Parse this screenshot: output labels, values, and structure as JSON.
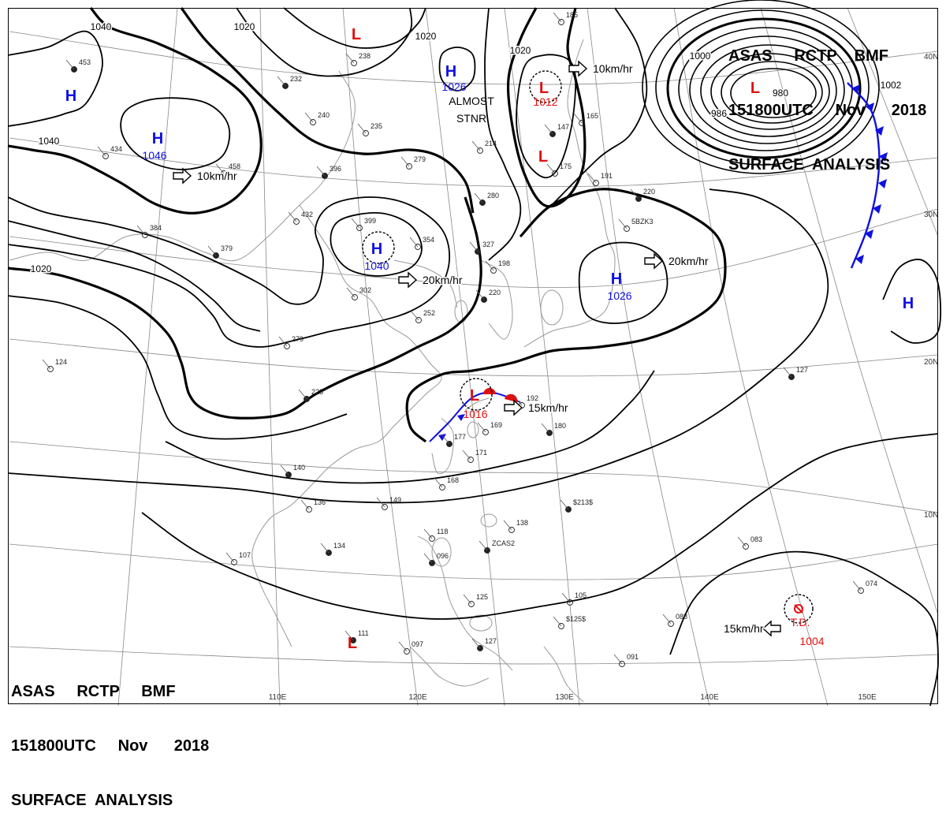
{
  "header": {
    "top_right": {
      "line1": "ASAS     RCTP    BMF",
      "line2": "151800UTC     Nov      2018",
      "line3": "SURFACE  ANALYSIS"
    },
    "bottom_left": {
      "line1": "ASAS     RCTP     BMF",
      "line2": "151800UTC     Nov      2018",
      "line3": "SURFACE  ANALYSIS"
    }
  },
  "colors": {
    "high": "#1010e0",
    "low": "#e01010",
    "isobar": "#000000",
    "grid": "#888888",
    "coast": "#9a9a9a"
  },
  "longitude_labels": [
    "110E",
    "120E",
    "130E",
    "140E",
    "150E"
  ],
  "latitude_labels": [
    "40N",
    "30N",
    "20N",
    "10N"
  ],
  "pressure_centers": [
    {
      "type": "H",
      "value": "1046",
      "motion": "10km/hr"
    },
    {
      "type": "H",
      "value": ""
    },
    {
      "type": "H",
      "value": "1026",
      "motion": "ALMOST STNR"
    },
    {
      "type": "H",
      "value": "1040",
      "motion": "20km/hr"
    },
    {
      "type": "H",
      "value": "1026",
      "motion": "20km/hr"
    },
    {
      "type": "H",
      "value": ""
    },
    {
      "type": "L",
      "value": ""
    },
    {
      "type": "L",
      "value": "1012",
      "motion": "10km/hr"
    },
    {
      "type": "L",
      "value": ""
    },
    {
      "type": "L",
      "value": ""
    },
    {
      "type": "L",
      "value": "1016",
      "motion": "15km/hr"
    },
    {
      "type": "L",
      "value": ""
    },
    {
      "type": "T.D.",
      "value": "1004",
      "motion": "15km/hr"
    }
  ],
  "isobar_labels": [
    "1040",
    "1020",
    "1020",
    "1020",
    "1040",
    "1020",
    "1000",
    "980",
    "986",
    "1002"
  ],
  "station_values": [
    "453",
    "434",
    "458",
    "396",
    "432",
    "384",
    "379",
    "399",
    "354",
    "327",
    "235",
    "240",
    "232",
    "214",
    "279",
    "280",
    "238",
    "185",
    "147",
    "165",
    "191",
    "220",
    "175",
    "198",
    "220",
    "252",
    "279",
    "228",
    "302",
    "124",
    "177",
    "171",
    "169",
    "180",
    "192",
    "168",
    "140",
    "149",
    "136",
    "134",
    "107",
    "118",
    "096",
    "125",
    "105",
    "127",
    "138",
    "091",
    "111",
    "097",
    "083",
    "127",
    "088",
    "074",
    "$213$",
    "$125$",
    "5BZK3",
    "ZCAS2"
  ]
}
